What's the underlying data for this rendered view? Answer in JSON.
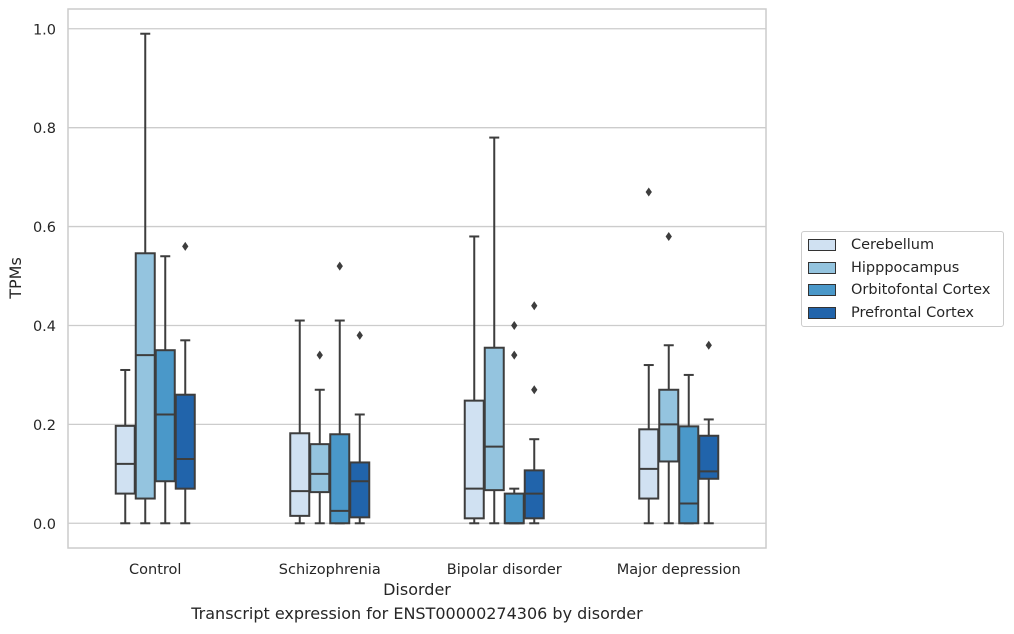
{
  "caption": "Transcript expression for ENST00000274306 by disorder",
  "chart_data": {
    "type": "box",
    "xlabel": "Disorder",
    "ylabel": "TPMs",
    "ylim": [
      -0.05,
      1.04
    ],
    "yticks": [
      "0.0",
      "0.2",
      "0.4",
      "0.6",
      "0.8",
      "1.0"
    ],
    "ytick_values": [
      0.0,
      0.2,
      0.4,
      0.6,
      0.8,
      1.0
    ],
    "grid": "horizontal",
    "legend_placement": "right",
    "categories": [
      "Control",
      "Schizophrenia",
      "Bipolar disorder",
      "Major depression"
    ],
    "series": [
      {
        "name": "Cerebellum",
        "color": "#d0e1f2",
        "boxes": [
          {
            "whislo": 0.0,
            "q1": 0.06,
            "med": 0.12,
            "q3": 0.197,
            "whishi": 0.31,
            "fliers": []
          },
          {
            "whislo": 0.0,
            "q1": 0.015,
            "med": 0.065,
            "q3": 0.182,
            "whishi": 0.41,
            "fliers": []
          },
          {
            "whislo": 0.0,
            "q1": 0.01,
            "med": 0.07,
            "q3": 0.248,
            "whishi": 0.58,
            "fliers": []
          },
          {
            "whislo": 0.0,
            "q1": 0.05,
            "med": 0.11,
            "q3": 0.19,
            "whishi": 0.32,
            "fliers": [
              0.67
            ]
          }
        ]
      },
      {
        "name": "Hipppocampus",
        "color": "#94c4df",
        "boxes": [
          {
            "whislo": 0.0,
            "q1": 0.05,
            "med": 0.34,
            "q3": 0.546,
            "whishi": 0.99,
            "fliers": []
          },
          {
            "whislo": 0.0,
            "q1": 0.063,
            "med": 0.1,
            "q3": 0.16,
            "whishi": 0.27,
            "fliers": [
              0.34
            ]
          },
          {
            "whislo": 0.0,
            "q1": 0.067,
            "med": 0.155,
            "q3": 0.355,
            "whishi": 0.78,
            "fliers": []
          },
          {
            "whislo": 0.0,
            "q1": 0.125,
            "med": 0.2,
            "q3": 0.27,
            "whishi": 0.36,
            "fliers": [
              0.58
            ]
          }
        ]
      },
      {
        "name": "Orbitofontal Cortex",
        "color": "#4a98c9",
        "boxes": [
          {
            "whislo": 0.0,
            "q1": 0.085,
            "med": 0.22,
            "q3": 0.35,
            "whishi": 0.54,
            "fliers": []
          },
          {
            "whislo": 0.0,
            "q1": 0.0,
            "med": 0.025,
            "q3": 0.18,
            "whishi": 0.41,
            "fliers": [
              0.52
            ]
          },
          {
            "whislo": 0.0,
            "q1": 0.0,
            "med": 0.0,
            "q3": 0.06,
            "whishi": 0.07,
            "fliers": [
              0.34,
              0.4
            ]
          },
          {
            "whislo": 0.0,
            "q1": 0.0,
            "med": 0.04,
            "q3": 0.196,
            "whishi": 0.3,
            "fliers": []
          }
        ]
      },
      {
        "name": "Prefrontal Cortex",
        "color": "#2164ab",
        "boxes": [
          {
            "whislo": 0.0,
            "q1": 0.07,
            "med": 0.13,
            "q3": 0.26,
            "whishi": 0.37,
            "fliers": [
              0.56
            ]
          },
          {
            "whislo": 0.0,
            "q1": 0.012,
            "med": 0.085,
            "q3": 0.123,
            "whishi": 0.22,
            "fliers": [
              0.38
            ]
          },
          {
            "whislo": 0.0,
            "q1": 0.01,
            "med": 0.06,
            "q3": 0.107,
            "whishi": 0.17,
            "fliers": [
              0.27,
              0.44
            ]
          },
          {
            "whislo": 0.0,
            "q1": 0.09,
            "med": 0.105,
            "q3": 0.177,
            "whishi": 0.21,
            "fliers": [
              0.36
            ]
          }
        ]
      }
    ]
  }
}
